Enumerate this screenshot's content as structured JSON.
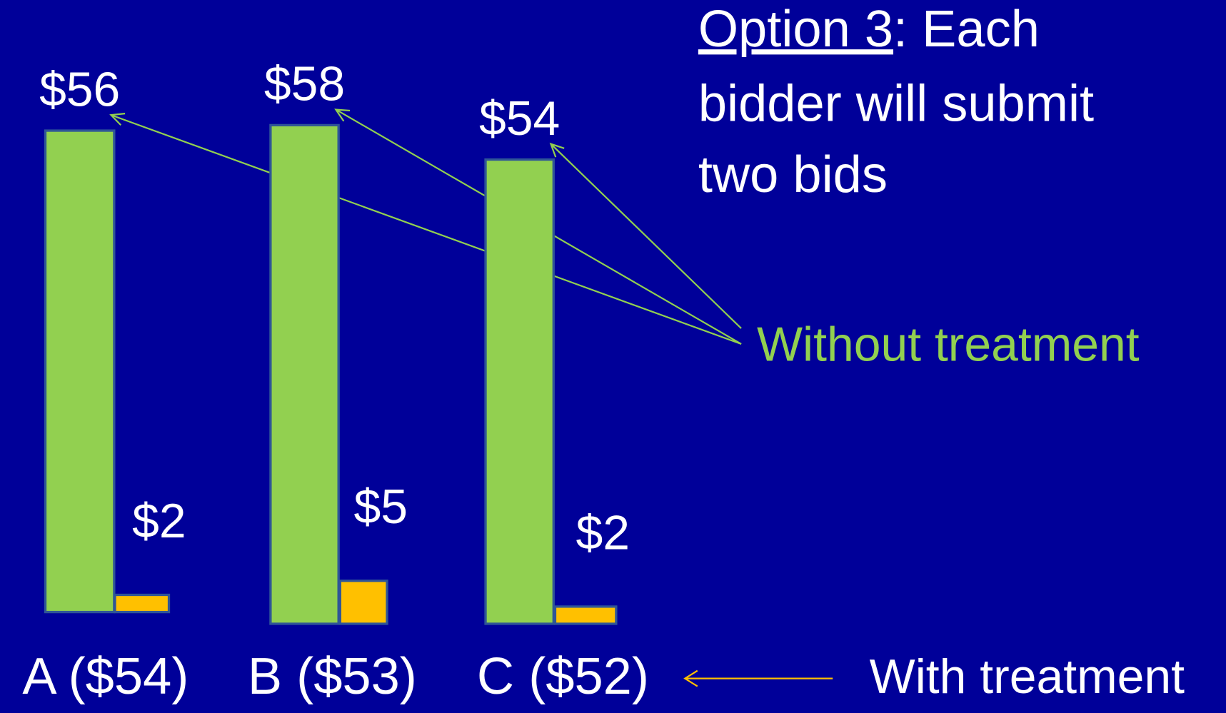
{
  "chart_data": {
    "type": "bar",
    "title_parts": [
      "Option 3",
      ": Each",
      "bidder will submit",
      "two bids"
    ],
    "categories": [
      "A ($54)",
      "B ($53)",
      "C ($52)"
    ],
    "series": [
      {
        "name": "Without treatment",
        "color": "#92d050",
        "values": [
          56,
          58,
          54
        ],
        "value_labels": [
          "$56",
          "$58",
          "$54"
        ]
      },
      {
        "name": "With treatment",
        "color": "#ffc000",
        "values": [
          2,
          5,
          2
        ],
        "value_labels": [
          "$2",
          "$5",
          "$2"
        ]
      }
    ]
  }
}
